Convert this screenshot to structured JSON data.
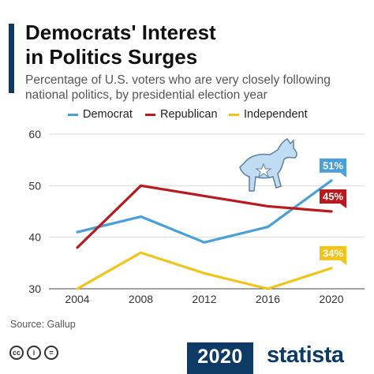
{
  "header": {
    "title_line1": "Democrats' Interest",
    "title_line2": "in Politics Surges",
    "subtitle": "Percentage of U.S. voters who are very closely following national politics, by presidential election year"
  },
  "chart_data": {
    "type": "line",
    "categories": [
      "2004",
      "2008",
      "2012",
      "2016",
      "2020"
    ],
    "ylim": [
      30,
      60
    ],
    "yticks": [
      "30",
      "40",
      "50",
      "60"
    ],
    "grid": true,
    "legend_position": "top",
    "series": [
      {
        "name": "Democrat",
        "color": "#4a9fd8",
        "values": [
          41,
          44,
          39,
          42,
          51
        ],
        "end_label": "51%"
      },
      {
        "name": "Republican",
        "color": "#b81a1e",
        "values": [
          38,
          50,
          48,
          46,
          45
        ],
        "end_label": "45%"
      },
      {
        "name": "Independent",
        "color": "#f0c419",
        "values": [
          30,
          37,
          33,
          30,
          34
        ],
        "end_label": "34%"
      }
    ],
    "annotation_icon": "donkey-icon"
  },
  "source": "Source: Gallup",
  "footer": {
    "badge_text": "2020",
    "brand": "statista",
    "license_icons": [
      "cc-icon",
      "by-icon",
      "nd-icon"
    ]
  }
}
